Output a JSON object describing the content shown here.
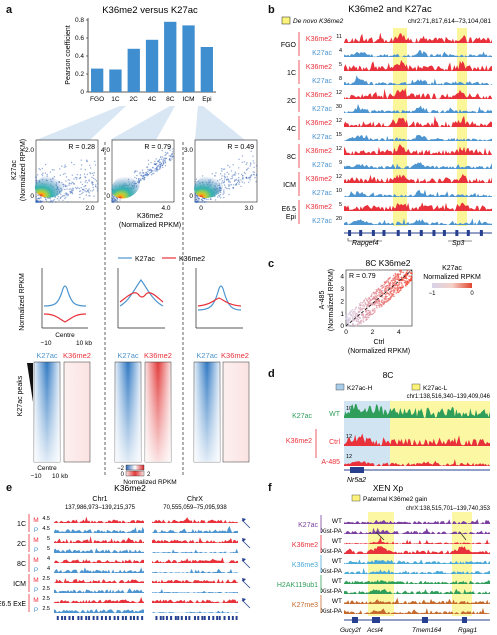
{
  "panel_letters": {
    "a": "a",
    "b": "b",
    "c": "c",
    "d": "d",
    "e": "e",
    "f": "f"
  },
  "colors": {
    "k27ac": "#4d95d0",
    "k36me2": "#e8313a",
    "highlight": "#fbf37a",
    "k36me3": "#49a9d8",
    "h2ak119ub1": "#2f9e5a",
    "k27me3": "#c56a2c",
    "gene": "#26408f"
  },
  "panel_a": {
    "title": "K36me2 versus K27ac",
    "ylabel": "Pearson coefficient",
    "scatter_ylabel": "K27ac",
    "scatter_ylabel2": "(Normalized RPKM)",
    "scatter_xlabel": "K36me2",
    "scatter_xlabel2": "(Normalized RPKM)",
    "scatters": [
      {
        "r": "R = 0.28",
        "xticks": [
          "0",
          "2.0"
        ],
        "yticks": [
          "0",
          "2.0"
        ]
      },
      {
        "r": "R = 0.79",
        "xticks": [
          "0",
          "4.0"
        ],
        "yticks": [
          "0",
          "4.0"
        ]
      },
      {
        "r": "R = 0.49",
        "xticks": [
          "0",
          "3.0"
        ],
        "yticks": [
          "0",
          "3.0"
        ]
      }
    ],
    "legend": [
      "K27ac",
      "K36me2"
    ],
    "profile_ylabel": "Normalized RPKM",
    "profile_x": {
      "left": "−10",
      "center": "Centre",
      "right": "10 kb"
    },
    "heat_labels": [
      "K27ac",
      "K36me2"
    ],
    "peaks_label": "K27ac peaks",
    "colorbar_ticks": [
      "−2",
      "0",
      "2"
    ],
    "colorbar_label": "Normalized RPKM"
  },
  "chart_data": {
    "type": "bar",
    "title": "K36me2 versus K27ac",
    "ylabel": "Pearson coefficient",
    "categories": [
      "FGO",
      "1C",
      "2C",
      "4C",
      "8C",
      "ICM",
      "Epi"
    ],
    "values": [
      0.26,
      0.25,
      0.48,
      0.58,
      0.78,
      0.74,
      0.5
    ],
    "ylim": [
      0,
      0.8
    ],
    "yticks": [
      "0",
      "0.2",
      "0.4",
      "0.6",
      "0.8"
    ]
  },
  "panel_b": {
    "title": "K36me2 and K27ac",
    "legend": "De novo K36me2",
    "coords": "chr2:71,817,614–73,104,081",
    "stages": [
      "FGO",
      "1C",
      "2C",
      "4C",
      "8C",
      "ICM",
      "E6.5\nEpi"
    ],
    "track_labels": [
      "K36me2",
      "K27ac"
    ],
    "scales": [
      [
        "11",
        "4"
      ],
      [
        "5",
        "8"
      ],
      [
        "12",
        "30"
      ],
      [
        "12",
        "15"
      ],
      [
        "12",
        "9"
      ],
      [
        "12",
        "10"
      ],
      [
        "5",
        "20"
      ]
    ],
    "genes": [
      "Rapgef4",
      "Sp3"
    ]
  },
  "panel_c": {
    "title": "8C K36me2",
    "r": "R = 0.79",
    "ylabel": "A-485",
    "ylabel2": "(Normalized RPKM)",
    "xlabel": "Ctrl",
    "xlabel2": "(Normalized RPKM)",
    "xticks": [
      "0",
      "2",
      "4"
    ],
    "yticks": [
      "0",
      "1",
      "2",
      "3",
      "4"
    ],
    "cbar_title": "K27ac",
    "cbar_title2": "Normalized RPKM",
    "cbar_ticks": [
      "−1",
      "0"
    ]
  },
  "panel_d": {
    "title": "8C",
    "legend": [
      "K27ac-H",
      "K27ac-L"
    ],
    "coords": "chr1:138,516,340–139,409,046",
    "tracks": [
      {
        "mark": "K27ac",
        "cond": "WT",
        "scale": "10"
      },
      {
        "mark": "K36me2",
        "cond": "Ctrl",
        "scale": "12"
      },
      {
        "mark": "",
        "cond": "A-485",
        "scale": "12"
      }
    ],
    "gene": "Nr5a2"
  },
  "panel_e": {
    "title": "K36me2",
    "chr1": "Chr1",
    "chr1_coords": "137,986,973–139,215,375",
    "chrx": "ChrX",
    "chrx_coords": "70,555,059–75,095,938",
    "stages": [
      "1C",
      "2C",
      "8C",
      "ICM",
      "E6.5 ExE"
    ],
    "letters": [
      "M",
      "P"
    ],
    "scales": [
      [
        "4.5",
        "4.5"
      ],
      [
        "5",
        "5"
      ],
      [
        "4",
        "4"
      ],
      [
        "2.5",
        "2.5"
      ],
      [
        "2.5",
        "2.5"
      ]
    ]
  },
  "panel_f": {
    "title": "XEN Xp",
    "legend": "Paternal K36me2 gain",
    "coords": "chrX:138,515,701–139,740,353",
    "groups": [
      {
        "mark": "K27ac",
        "conds": [
          "WT",
          "Xist-PA"
        ]
      },
      {
        "mark": "K36me2",
        "conds": [
          "WT",
          "Xist-PA"
        ]
      },
      {
        "mark": "K36me3",
        "conds": [
          "WT",
          "Xist-PA"
        ]
      },
      {
        "mark": "H2AK119ub1",
        "conds": [
          "WT",
          "Xist-PA"
        ]
      },
      {
        "mark": "K27me3",
        "conds": [
          "WT",
          "Xist-PA"
        ]
      }
    ],
    "genes": [
      "Gucy2f",
      "Acsl4",
      "Tmem164",
      "Rgag1"
    ]
  }
}
